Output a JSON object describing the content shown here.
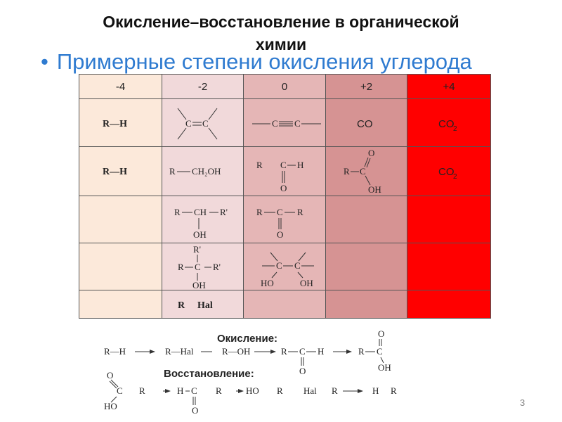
{
  "title_line1": "Окисление–восстановление в органической",
  "title_line2": "химии",
  "bullet": "Примерные степени окисления углерода",
  "bullet_marker": "•",
  "table": {
    "headers": [
      "-4",
      "-2",
      "0",
      "+2",
      "+4"
    ],
    "colors": [
      "#fce9da",
      "#f1d9da",
      "#e5b6b6",
      "#d69393",
      "#ff0000"
    ],
    "rows": [
      [
        "R—H",
        "C=C",
        "—C≡C—",
        "CO",
        "CO2"
      ],
      [
        "R—H",
        "R—CH2OH",
        "R–CH=O",
        "R–COOH",
        "CO2"
      ],
      [
        "",
        "R—CH(OH)—R'",
        "R—C(=O)—R",
        "",
        ""
      ],
      [
        "",
        "RR'R'C—OH",
        "HO–C–C–OH",
        "",
        ""
      ],
      [
        "",
        "R Hal",
        "",
        "",
        ""
      ]
    ],
    "chem": {
      "R": "R",
      "H": "H",
      "C": "C",
      "O": "O",
      "OH": "OH",
      "HO": "HO",
      "Hal": "Hal",
      "CH": "CH",
      "Rp": "R'",
      "CH2OH": "CH₂OH",
      "CO": "CO",
      "CO2_base": "CO",
      "CO2_sub": "2"
    }
  },
  "oxidation_label": "Окисление:",
  "reduction_label": "Восстановление:",
  "oxidation_chain": [
    "R—H",
    "R—Hal",
    "R—OH",
    "R—C(=O)—H",
    "R—COOH"
  ],
  "reduction_chain": [
    "HOOC—R",
    "H—C(=O)—R",
    "HO—R",
    "Hal—R",
    "H—R"
  ],
  "page_number": "3"
}
